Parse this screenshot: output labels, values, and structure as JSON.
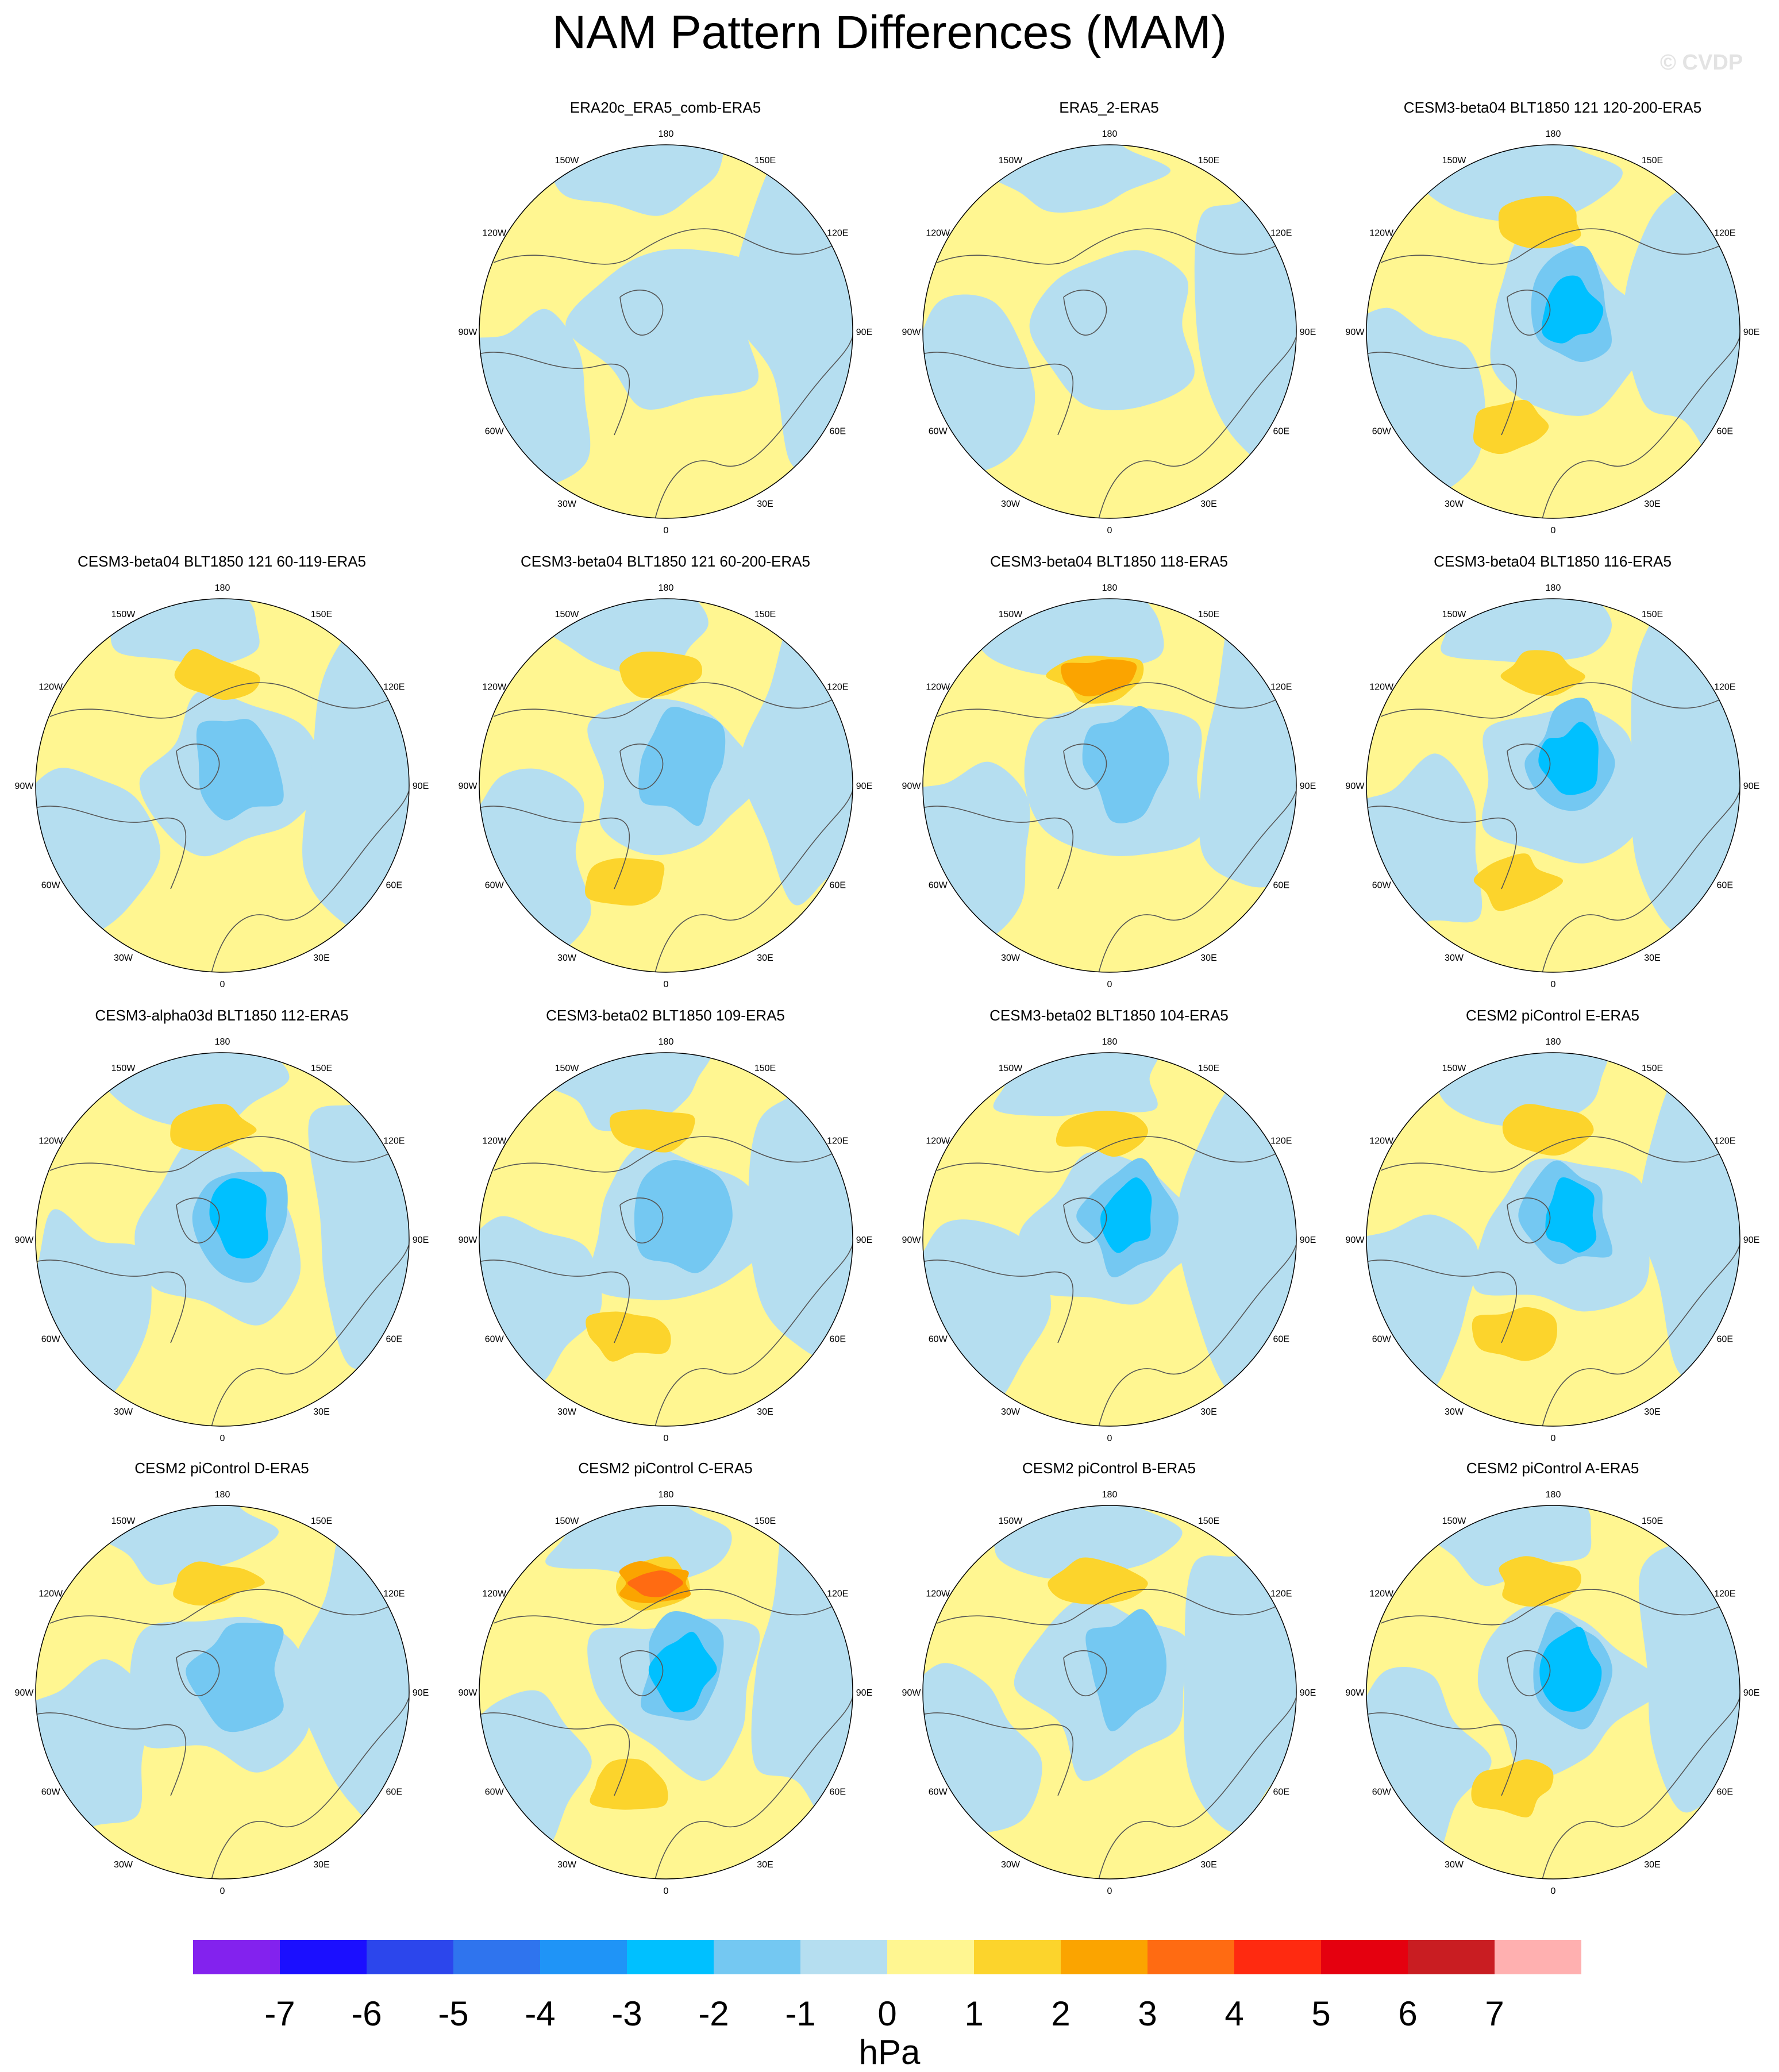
{
  "title": "NAM Pattern Differences (MAM)",
  "watermark": "© CVDP",
  "longitude_labels": [
    "180",
    "150E",
    "120E",
    "90E",
    "60E",
    "30E",
    "0",
    "30W",
    "60W",
    "90W",
    "120W",
    "150W"
  ],
  "units": "hPa",
  "colorbar": {
    "tick_labels": [
      "-7",
      "-6",
      "-5",
      "-4",
      "-3",
      "-2",
      "-1",
      "0",
      "1",
      "2",
      "3",
      "4",
      "5",
      "6",
      "7"
    ],
    "colors": [
      "#8322ee",
      "#1b0fff",
      "#2c46ec",
      "#2f74ee",
      "#1f94f7",
      "#00c0ff",
      "#74c8f2",
      "#b5def0",
      "#fff691",
      "#fcd42c",
      "#fba400",
      "#ff6b12",
      "#ff2a10",
      "#e5000f",
      "#c91d22",
      "#ffb0b0"
    ]
  },
  "panels": [
    {
      "title": "ERA20c_ERA5_comb-ERA5",
      "min": -1,
      "max": 0
    },
    {
      "title": "ERA5_2-ERA5",
      "min": -1,
      "max": 0
    },
    {
      "title": "CESM3-beta04 BLT1850 121 120-200-ERA5",
      "min": -3,
      "max": 1
    },
    {
      "title": "CESM3-beta04 BLT1850 121 60-119-ERA5",
      "min": -2,
      "max": 1
    },
    {
      "title": "CESM3-beta04 BLT1850 121 60-200-ERA5",
      "min": -2,
      "max": 1
    },
    {
      "title": "CESM3-beta04 BLT1850 118-ERA5",
      "min": -2,
      "max": 2
    },
    {
      "title": "CESM3-beta04 BLT1850 116-ERA5",
      "min": -3,
      "max": 1
    },
    {
      "title": "CESM3-alpha03d BLT1850 112-ERA5",
      "min": -3,
      "max": 1
    },
    {
      "title": "CESM3-beta02 BLT1850 109-ERA5",
      "min": -2,
      "max": 1
    },
    {
      "title": "CESM3-beta02 BLT1850 104-ERA5",
      "min": -3,
      "max": 1
    },
    {
      "title": "CESM2 piControl E-ERA5",
      "min": -3,
      "max": 1
    },
    {
      "title": "CESM2 piControl D-ERA5",
      "min": -2,
      "max": 1
    },
    {
      "title": "CESM2 piControl C-ERA5",
      "min": -3,
      "max": 3
    },
    {
      "title": "CESM2 piControl B-ERA5",
      "min": -2,
      "max": 1
    },
    {
      "title": "CESM2 piControl A-ERA5",
      "min": -3,
      "max": 1
    }
  ]
}
